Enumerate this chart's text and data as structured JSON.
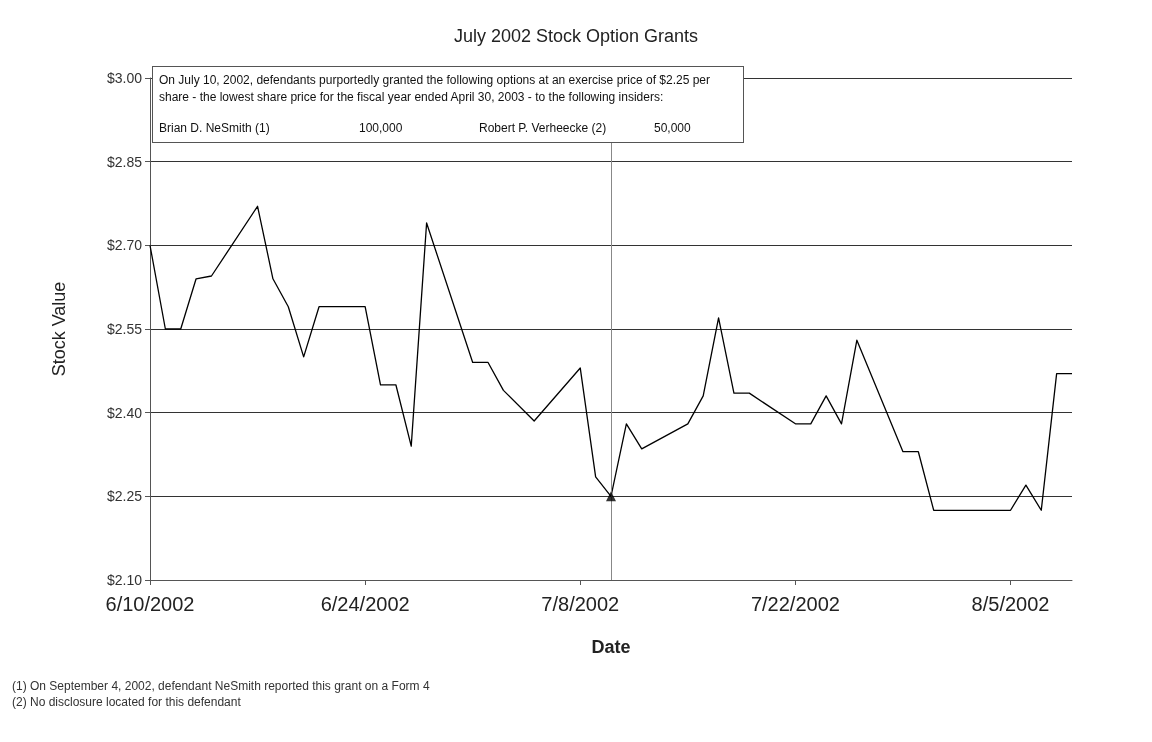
{
  "chart_data": {
    "type": "line",
    "title": "July 2002 Stock Option Grants",
    "xlabel": "Date",
    "ylabel": "Stock Value",
    "annotations": [
      "On July 10, 2002, defendants purportedly granted the following options at an exercise price of $2.25 per share - the lowest share price for the fiscal year ended April 30, 2003 - to the following insiders:",
      "Brian D. NeSmith (1)",
      "100,000",
      "Robert P. Verheecke (2)",
      "50,000",
      "(1) On September 4, 2002, defendant NeSmith reported this grant on a Form 4",
      "(2) No disclosure located for this defendant"
    ],
    "x": [
      "2002-06-10",
      "2002-06-11",
      "2002-06-12",
      "2002-06-13",
      "2002-06-14",
      "2002-06-17",
      "2002-06-18",
      "2002-06-19",
      "2002-06-20",
      "2002-06-21",
      "2002-06-24",
      "2002-06-25",
      "2002-06-26",
      "2002-06-27",
      "2002-06-28",
      "2002-07-01",
      "2002-07-02",
      "2002-07-03",
      "2002-07-05",
      "2002-07-08",
      "2002-07-09",
      "2002-07-10",
      "2002-07-11",
      "2002-07-12",
      "2002-07-15",
      "2002-07-16",
      "2002-07-17",
      "2002-07-18",
      "2002-07-19",
      "2002-07-22",
      "2002-07-23",
      "2002-07-24",
      "2002-07-25",
      "2002-07-26",
      "2002-07-29",
      "2002-07-30",
      "2002-07-31",
      "2002-08-01",
      "2002-08-02",
      "2002-08-05",
      "2002-08-06",
      "2002-08-07",
      "2002-08-08",
      "2002-08-09"
    ],
    "series": [
      {
        "color": "#000000",
        "marker": "none",
        "values": [
          2.7,
          2.55,
          2.55,
          2.64,
          2.645,
          2.77,
          2.64,
          2.59,
          2.5,
          2.59,
          2.59,
          2.45,
          2.45,
          2.34,
          2.74,
          2.49,
          2.49,
          2.44,
          2.385,
          2.48,
          2.285,
          2.25,
          2.38,
          2.335,
          2.38,
          2.43,
          2.57,
          2.435,
          2.435,
          2.38,
          2.38,
          2.43,
          2.38,
          2.53,
          2.33,
          2.33,
          2.225,
          2.225,
          2.225,
          2.225,
          2.27,
          2.225,
          2.47,
          2.47
        ]
      },
      {
        "type": "scatter",
        "color": "#000000",
        "marker": "triangle",
        "x": [
          "2002-07-10"
        ],
        "values": [
          2.25
        ]
      }
    ],
    "xlim": [
      "2002-06-10",
      "2002-08-09"
    ],
    "xticks": [
      {
        "value": "2002-06-10",
        "label": "6/10/2002"
      },
      {
        "value": "2002-06-24",
        "label": "6/24/2002"
      },
      {
        "value": "2002-07-08",
        "label": "7/8/2002"
      },
      {
        "value": "2002-07-22",
        "label": "7/22/2002"
      },
      {
        "value": "2002-08-05",
        "label": "8/5/2002"
      }
    ],
    "ylim": [
      2.1,
      3.0
    ],
    "yticks": [
      {
        "value": 2.1,
        "label": "$2.10"
      },
      {
        "value": 2.25,
        "label": "$2.25"
      },
      {
        "value": 2.4,
        "label": "$2.40"
      },
      {
        "value": 2.55,
        "label": "$2.55"
      },
      {
        "value": 2.7,
        "label": "$2.70"
      },
      {
        "value": 2.85,
        "label": "$2.85"
      },
      {
        "value": 3.0,
        "label": "$3.00"
      }
    ],
    "ref_lines": [
      {
        "axis": "x",
        "value": "2002-07-10",
        "color": "#888888",
        "line_style": "solid"
      }
    ],
    "grid": "y"
  }
}
